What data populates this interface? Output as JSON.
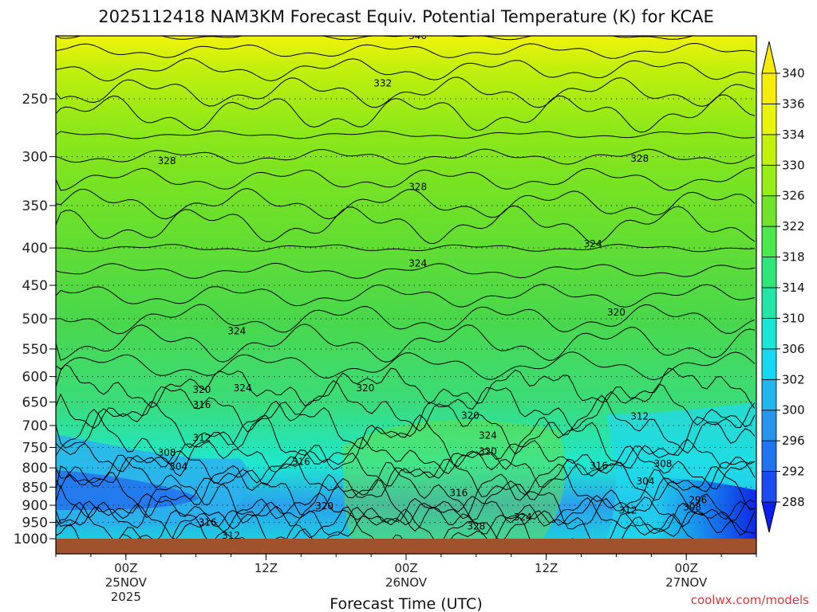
{
  "chart_data": {
    "type": "heatmap",
    "title": "2025112418 NAM3KM Forecast Equiv. Potential Temperature (K) for KCAE",
    "xlabel": "Forecast Time (UTC)",
    "ylabel": "",
    "credit": "coolwx.com/models",
    "y_scale": "log-pressure (inverted)",
    "ylim": [
      1000,
      200
    ],
    "y_ticks": [
      250,
      300,
      350,
      400,
      450,
      500,
      550,
      600,
      650,
      700,
      750,
      800,
      850,
      900,
      950,
      1000
    ],
    "x_hours_range": [
      -6,
      54
    ],
    "x_ticks": [
      {
        "hour": 0,
        "lines": [
          "00Z",
          "25NOV",
          "2025"
        ]
      },
      {
        "hour": 12,
        "lines": [
          "12Z"
        ]
      },
      {
        "hour": 24,
        "lines": [
          "00Z",
          "26NOV"
        ]
      },
      {
        "hour": 36,
        "lines": [
          "12Z"
        ]
      },
      {
        "hour": 48,
        "lines": [
          "00Z",
          "27NOV"
        ]
      }
    ],
    "colorbar": {
      "levels": [
        288,
        292,
        296,
        300,
        302,
        306,
        310,
        314,
        318,
        322,
        326,
        330,
        334,
        336,
        340
      ],
      "colors": [
        "#0a1ff0",
        "#1a4cf0",
        "#1f74ef",
        "#2894ee",
        "#22b6f0",
        "#16d8f2",
        "#1ae6d6",
        "#22e6a8",
        "#2ee678",
        "#4ae84a",
        "#6fe42a",
        "#97ee14",
        "#c2f20c",
        "#e8f40a",
        "#f5ec0a"
      ]
    },
    "contour_labels": [
      {
        "value": 340,
        "hour": 25.0,
        "p": 205
      },
      {
        "value": 332,
        "hour": 22.0,
        "p": 238
      },
      {
        "value": 328,
        "hour": 3.5,
        "p": 304
      },
      {
        "value": 328,
        "hour": 25.0,
        "p": 330
      },
      {
        "value": 328,
        "hour": 44.0,
        "p": 302
      },
      {
        "value": 324,
        "hour": 25.0,
        "p": 420
      },
      {
        "value": 324,
        "hour": 40.0,
        "p": 395
      },
      {
        "value": 324,
        "hour": 9.5,
        "p": 520
      },
      {
        "value": 324,
        "hour": 10.0,
        "p": 622
      },
      {
        "value": 324,
        "hour": 31.0,
        "p": 722
      },
      {
        "value": 324,
        "hour": 34.0,
        "p": 935
      },
      {
        "value": 320,
        "hour": 6.5,
        "p": 625
      },
      {
        "value": 320,
        "hour": 20.5,
        "p": 622
      },
      {
        "value": 320,
        "hour": 29.5,
        "p": 678
      },
      {
        "value": 320,
        "hour": 31.0,
        "p": 760
      },
      {
        "value": 320,
        "hour": 17.0,
        "p": 902
      },
      {
        "value": 320,
        "hour": 42.0,
        "p": 490
      },
      {
        "value": 316,
        "hour": 6.5,
        "p": 656
      },
      {
        "value": 316,
        "hour": 15.0,
        "p": 785
      },
      {
        "value": 316,
        "hour": 28.5,
        "p": 865
      },
      {
        "value": 316,
        "hour": 40.5,
        "p": 795
      },
      {
        "value": 312,
        "hour": 6.5,
        "p": 728
      },
      {
        "value": 312,
        "hour": 44.0,
        "p": 680
      },
      {
        "value": 312,
        "hour": 43.0,
        "p": 915
      },
      {
        "value": 312,
        "hour": 9.0,
        "p": 990
      },
      {
        "value": 308,
        "hour": 3.5,
        "p": 762
      },
      {
        "value": 308,
        "hour": 46.0,
        "p": 790
      },
      {
        "value": 308,
        "hour": 48.5,
        "p": 905
      },
      {
        "value": 304,
        "hour": 4.5,
        "p": 797
      },
      {
        "value": 304,
        "hour": 44.5,
        "p": 835
      },
      {
        "value": 296,
        "hour": 49.0,
        "p": 885
      },
      {
        "value": 316,
        "hour": 7.0,
        "p": 950
      },
      {
        "value": 328,
        "hour": 30.0,
        "p": 962
      }
    ]
  }
}
